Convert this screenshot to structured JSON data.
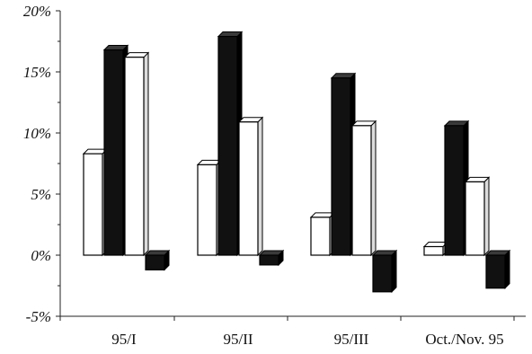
{
  "chart_data": {
    "type": "bar",
    "style": "3d",
    "categories": [
      "95/I",
      "95/II",
      "95/III",
      "Oct./Nov. 95"
    ],
    "series": [
      {
        "values": [
          8.3,
          7.4,
          3.1,
          0.7
        ],
        "fill": "#ffffff"
      },
      {
        "values": [
          16.8,
          17.9,
          14.5,
          10.6
        ],
        "fill": "#111111"
      },
      {
        "values": [
          16.2,
          10.9,
          10.6,
          6.0
        ],
        "fill": "#ffffff"
      },
      {
        "values": [
          -1.2,
          -0.8,
          -3.0,
          -2.7
        ],
        "fill": "#111111"
      }
    ],
    "yticks": [
      "20%",
      "15%",
      "10%",
      "5%",
      "0%",
      "-5%"
    ],
    "ylim": [
      -5,
      20
    ],
    "grid": false,
    "legend": false
  }
}
